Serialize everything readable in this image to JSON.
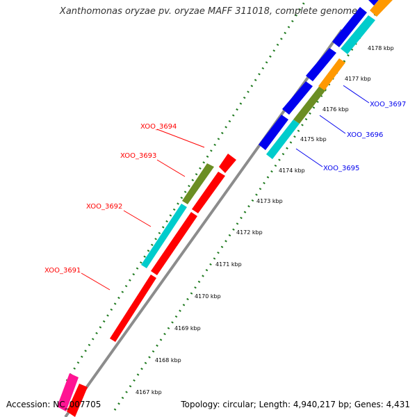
{
  "title": "Xanthomonas oryzae pv. oryzae MAFF 311018, complete genome",
  "accession": "Accession: NC_007705",
  "topology": "Topology: circular; Length: 4,940,217 bp; Genes: 4,431",
  "colors": {
    "backbone": "#8c8c8c",
    "tick": "#1f7a1f",
    "red": "#ff0000",
    "blue": "#0000ee",
    "cyan": "#00cccc",
    "olive": "#6b8e23",
    "orange": "#ff9900",
    "magenta": "#ff1493",
    "label_red": "#ff0000",
    "label_blue": "#0000ee"
  },
  "kbp_ticks": [
    "4167 kbp",
    "4168 kbp",
    "4169 kbp",
    "4170 kbp",
    "4171 kbp",
    "4172 kbp",
    "4173 kbp",
    "4174 kbp",
    "4175 kbp",
    "4176 kbp",
    "4177 kbp",
    "4178 kbp"
  ],
  "gene_labels": {
    "left": [
      "XOO_3691",
      "XOO_3692",
      "XOO_3693",
      "XOO_3694"
    ],
    "right": [
      "XOO_3695",
      "XOO_3696",
      "XOO_3697"
    ]
  }
}
